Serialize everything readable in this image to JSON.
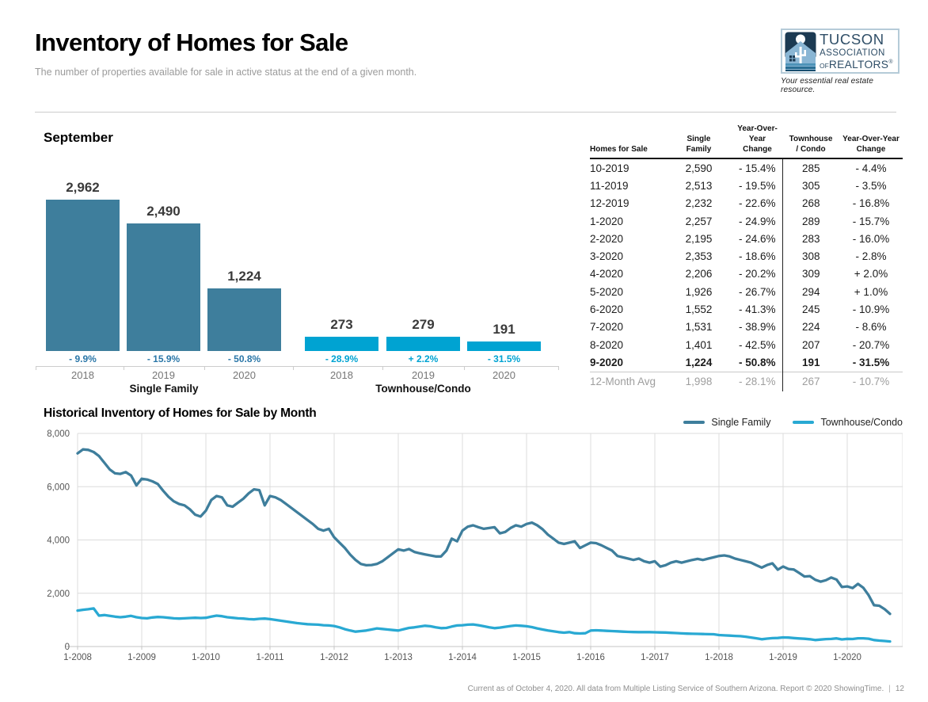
{
  "header": {
    "title": "Inventory of Homes for Sale",
    "subtitle": "The number of properties available for sale in active status at the end of a given month.",
    "logo": {
      "line1": "TUCSON",
      "line2": "ASSOCIATION",
      "line3_of": "OF",
      "line3_realtors": "REALTORS",
      "reg": "®",
      "tagline": "Your essential real estate resource."
    }
  },
  "table": {
    "headers": [
      "Homes for Sale",
      "Single\nFamily",
      "Year-Over-Year\nChange",
      "Townhouse\n/ Condo",
      "Year-Over-Year\nChange"
    ],
    "rows": [
      {
        "cells": [
          "10-2019",
          "2,590",
          "- 15.4%",
          "285",
          "- 4.4%"
        ],
        "style": "normal"
      },
      {
        "cells": [
          "11-2019",
          "2,513",
          "- 19.5%",
          "305",
          "- 3.5%"
        ],
        "style": "normal"
      },
      {
        "cells": [
          "12-2019",
          "2,232",
          "- 22.6%",
          "268",
          "- 16.8%"
        ],
        "style": "normal"
      },
      {
        "cells": [
          "1-2020",
          "2,257",
          "- 24.9%",
          "289",
          "- 15.7%"
        ],
        "style": "normal"
      },
      {
        "cells": [
          "2-2020",
          "2,195",
          "- 24.6%",
          "283",
          "- 16.0%"
        ],
        "style": "normal"
      },
      {
        "cells": [
          "3-2020",
          "2,353",
          "- 18.6%",
          "308",
          "- 2.8%"
        ],
        "style": "normal"
      },
      {
        "cells": [
          "4-2020",
          "2,206",
          "- 20.2%",
          "309",
          "+ 2.0%"
        ],
        "style": "normal"
      },
      {
        "cells": [
          "5-2020",
          "1,926",
          "- 26.7%",
          "294",
          "+ 1.0%"
        ],
        "style": "normal"
      },
      {
        "cells": [
          "6-2020",
          "1,552",
          "- 41.3%",
          "245",
          "- 10.9%"
        ],
        "style": "normal"
      },
      {
        "cells": [
          "7-2020",
          "1,531",
          "- 38.9%",
          "224",
          "- 8.6%"
        ],
        "style": "normal"
      },
      {
        "cells": [
          "8-2020",
          "1,401",
          "- 42.5%",
          "207",
          "- 20.7%"
        ],
        "style": "normal"
      },
      {
        "cells": [
          "9-2020",
          "1,224",
          "- 50.8%",
          "191",
          "- 31.5%"
        ],
        "style": "bold"
      },
      {
        "cells": [
          "12-Month Avg",
          "1,998",
          "- 28.1%",
          "267",
          "- 10.7%"
        ],
        "style": "avg"
      }
    ]
  },
  "chart_data": [
    {
      "type": "bar",
      "title": "September",
      "ylabel": "Homes for Sale",
      "groups": [
        {
          "label": "Single Family",
          "categories": [
            "2018",
            "2019",
            "2020"
          ],
          "values": [
            2962,
            2490,
            1224
          ],
          "value_labels": [
            "2,962",
            "2,490",
            "1,224"
          ],
          "yoy_change": [
            "- 9.9%",
            "- 15.9%",
            "- 50.8%"
          ],
          "bar_color": "#3e7e9c",
          "pct_color": "#2b77a8"
        },
        {
          "label": "Townhouse/Condo",
          "categories": [
            "2018",
            "2019",
            "2020"
          ],
          "values": [
            273,
            279,
            191
          ],
          "value_labels": [
            "273",
            "279",
            "191"
          ],
          "yoy_change": [
            "- 28.9%",
            "+ 2.2%",
            "- 31.5%"
          ],
          "bar_color": "#00a3d2",
          "pct_color": "#00a3d2"
        }
      ]
    },
    {
      "type": "line",
      "title": "Historical Inventory of Homes for Sale by Month",
      "x_start": "1-2008",
      "x_end": "9-2020",
      "x_tick_labels": [
        "1-2008",
        "1-2009",
        "1-2010",
        "1-2011",
        "1-2012",
        "1-2013",
        "1-2014",
        "1-2015",
        "1-2016",
        "1-2017",
        "1-2018",
        "1-2019",
        "1-2020"
      ],
      "ylim": [
        0,
        8000
      ],
      "y_ticks": [
        0,
        2000,
        4000,
        6000,
        8000
      ],
      "y_tick_labels": [
        "0",
        "2,000",
        "4,000",
        "6,000",
        "8,000"
      ],
      "grid": true,
      "legend_position": "top-right",
      "series": [
        {
          "name": "Single Family",
          "color": "#3e7e9c",
          "values": [
            7250,
            7400,
            7380,
            7300,
            7150,
            6900,
            6650,
            6500,
            6480,
            6550,
            6420,
            6050,
            6300,
            6270,
            6200,
            6100,
            5850,
            5620,
            5450,
            5350,
            5300,
            5150,
            4950,
            4880,
            5100,
            5500,
            5650,
            5600,
            5300,
            5250,
            5400,
            5550,
            5750,
            5900,
            5870,
            5300,
            5650,
            5600,
            5500,
            5350,
            5200,
            5050,
            4900,
            4750,
            4600,
            4420,
            4350,
            4420,
            4100,
            3900,
            3700,
            3450,
            3250,
            3100,
            3050,
            3060,
            3100,
            3200,
            3350,
            3500,
            3650,
            3600,
            3660,
            3550,
            3500,
            3460,
            3420,
            3380,
            3380,
            3600,
            4050,
            3950,
            4350,
            4500,
            4550,
            4480,
            4420,
            4450,
            4480,
            4250,
            4300,
            4450,
            4550,
            4500,
            4600,
            4650,
            4550,
            4400,
            4200,
            4050,
            3900,
            3850,
            3900,
            3950,
            3700,
            3800,
            3900,
            3880,
            3800,
            3700,
            3600,
            3400,
            3350,
            3300,
            3250,
            3300,
            3200,
            3150,
            3200,
            3000,
            3050,
            3150,
            3200,
            3150,
            3200,
            3250,
            3288,
            3250,
            3300,
            3350,
            3400,
            3420,
            3380,
            3300,
            3250,
            3200,
            3150,
            3050,
            2962,
            3061,
            3122,
            2884,
            3005,
            2911,
            2891,
            2764,
            2628,
            2644,
            2506,
            2437,
            2490,
            2590,
            2513,
            2232,
            2257,
            2195,
            2353,
            2206,
            1926,
            1552,
            1531,
            1401,
            1224
          ]
        },
        {
          "name": "Townhouse/Condo",
          "color": "#29a9d3",
          "values": [
            1350,
            1380,
            1400,
            1430,
            1160,
            1180,
            1150,
            1120,
            1100,
            1120,
            1150,
            1100,
            1070,
            1060,
            1090,
            1110,
            1100,
            1080,
            1060,
            1050,
            1060,
            1070,
            1080,
            1070,
            1080,
            1120,
            1160,
            1140,
            1100,
            1080,
            1060,
            1050,
            1030,
            1020,
            1040,
            1050,
            1030,
            1000,
            970,
            940,
            910,
            880,
            860,
            840,
            830,
            820,
            800,
            790,
            770,
            720,
            650,
            600,
            560,
            580,
            600,
            640,
            680,
            660,
            640,
            620,
            600,
            650,
            700,
            720,
            750,
            780,
            760,
            720,
            690,
            700,
            750,
            790,
            800,
            820,
            830,
            800,
            760,
            720,
            690,
            710,
            740,
            770,
            790,
            780,
            760,
            730,
            680,
            640,
            600,
            570,
            540,
            520,
            540,
            500,
            490,
            500,
            600,
            610,
            600,
            590,
            580,
            570,
            560,
            550,
            545,
            540,
            540,
            540,
            535,
            530,
            525,
            515,
            505,
            495,
            485,
            480,
            475,
            470,
            465,
            460,
            430,
            420,
            410,
            400,
            390,
            370,
            340,
            310,
            273,
            298,
            316,
            322,
            343,
            337,
            317,
            303,
            291,
            275,
            245,
            261,
            279,
            285,
            305,
            268,
            289,
            283,
            308,
            309,
            294,
            245,
            224,
            207,
            191
          ]
        }
      ]
    }
  ],
  "footer": {
    "text": "Current as of October 4, 2020. All data from Multiple Listing Service of Southern Arizona. Report © 2020 ShowingTime.",
    "page": "12"
  }
}
